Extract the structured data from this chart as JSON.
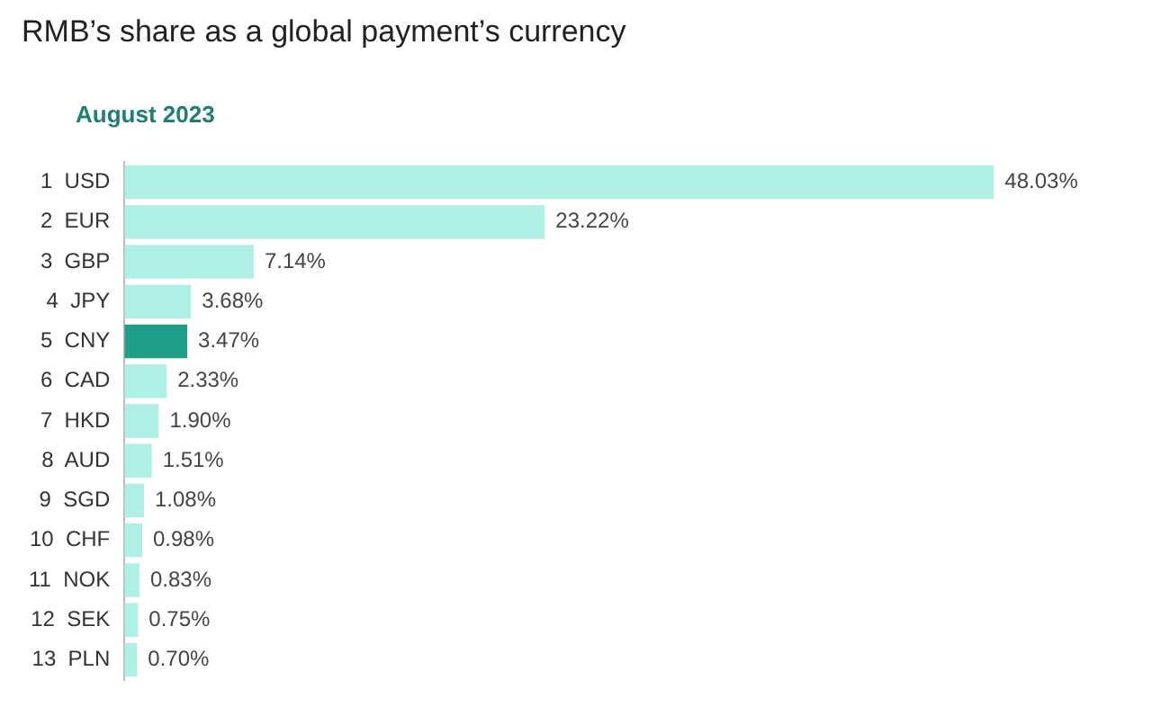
{
  "chart_data": {
    "type": "bar",
    "orientation": "horizontal",
    "title": "RMB’s share as a global payment’s currency",
    "subtitle": "August 2023",
    "categories": [
      "1  USD",
      "2  EUR",
      "3  GBP",
      "4  JPY",
      "5  CNY",
      "6  CAD",
      "7  HKD",
      "8  AUD",
      "9  SGD",
      "10  CHF",
      "11  NOK",
      "12  SEK",
      "13  PLN"
    ],
    "values": [
      48.03,
      23.22,
      7.14,
      3.68,
      3.47,
      2.33,
      1.9,
      1.51,
      1.08,
      0.98,
      0.83,
      0.75,
      0.7
    ],
    "colors": [
      "#aeefe6",
      "#aeefe6",
      "#aeefe6",
      "#aeefe6",
      "#1f9e88",
      "#aeefe6",
      "#aeefe6",
      "#aeefe6",
      "#aeefe6",
      "#aeefe6",
      "#aeefe6",
      "#aeefe6",
      "#aeefe6"
    ],
    "value_labels": [
      "48.03%",
      "23.22%",
      "7.14%",
      "3.68%",
      "3.47%",
      "2.33%",
      "1.90%",
      "1.51%",
      "1.08%",
      "0.98%",
      "0.83%",
      "0.75%",
      "0.70%"
    ],
    "tick_labels": "y",
    "legend": false
  }
}
